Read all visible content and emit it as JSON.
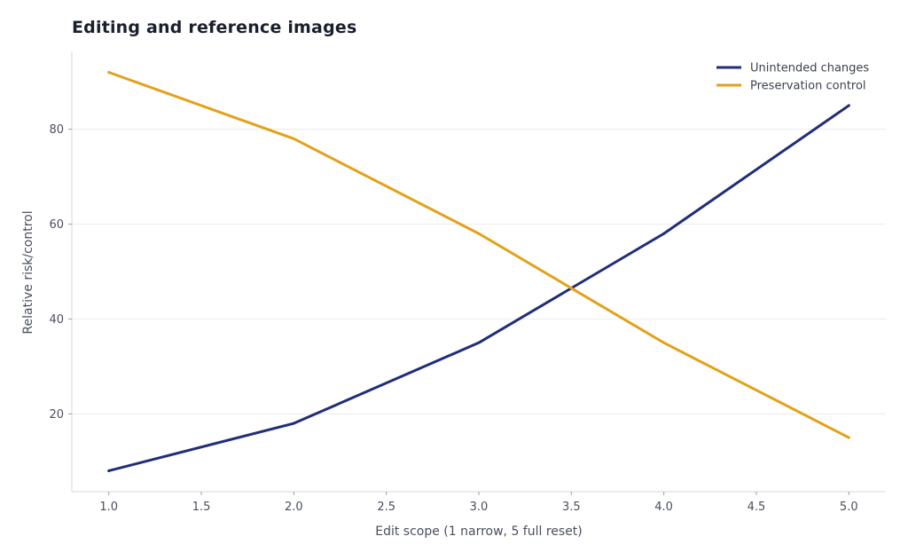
{
  "chart_data": {
    "type": "line",
    "title": "Editing and reference images",
    "xlabel": "Edit scope (1 narrow, 5 full reset)",
    "ylabel": "Relative risk/control",
    "x": [
      1,
      2,
      3,
      4,
      5
    ],
    "xlim": [
      0.8,
      5.2
    ],
    "ylim": [
      3.6,
      96.4
    ],
    "x_ticks": [
      1.0,
      1.5,
      2.0,
      2.5,
      3.0,
      3.5,
      4.0,
      4.5,
      5.0
    ],
    "x_tick_labels": [
      "1.0",
      "1.5",
      "2.0",
      "2.5",
      "3.0",
      "3.5",
      "4.0",
      "4.5",
      "5.0"
    ],
    "y_ticks": [
      20,
      40,
      60,
      80
    ],
    "y_tick_labels": [
      "20",
      "40",
      "60",
      "80"
    ],
    "grid": "horizontal",
    "legend_position": "top-right",
    "series": [
      {
        "name": "Unintended changes",
        "values": [
          8,
          18,
          35,
          58,
          85
        ],
        "color": "#1f2d7a"
      },
      {
        "name": "Preservation control",
        "values": [
          92,
          78,
          58,
          35,
          15
        ],
        "color": "#e3a11a"
      }
    ]
  }
}
